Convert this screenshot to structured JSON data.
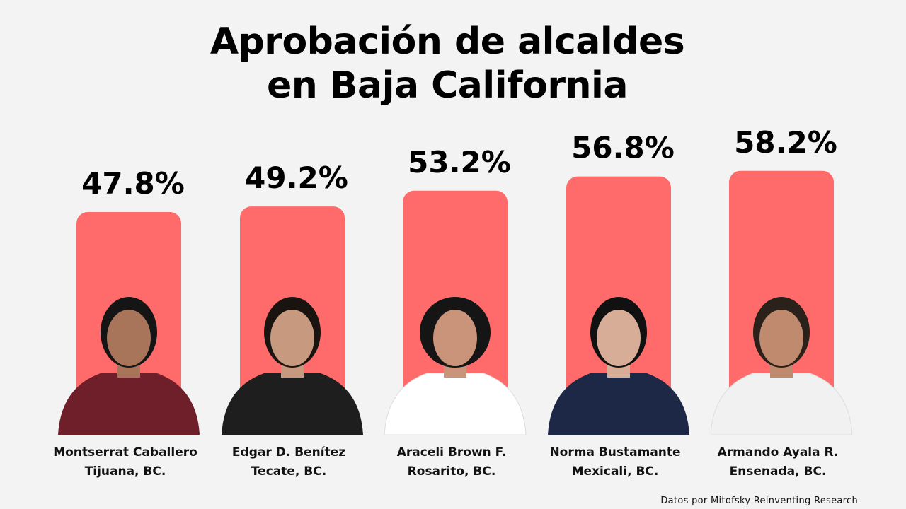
{
  "title_line1": "Aprobación de alcaldes",
  "title_line2": "en Baja California",
  "source": "Datos por Mitofsky Reinventing Research",
  "colors": {
    "bar": "#ff6b6b",
    "background": "#f3f3f3"
  },
  "chart_data": {
    "type": "bar",
    "title": "Aprobación de alcaldes en Baja California",
    "categories": [
      "Montserrat Caballero Tijuana, BC.",
      "Edgar D. Benítez Tecate, BC.",
      "Araceli Brown F. Rosarito, BC.",
      "Norma Bustamante Mexicali, BC.",
      "Armando Ayala R. Ensenada, BC."
    ],
    "people": [
      {
        "name": "Montserrat Caballero",
        "city": "Tijuana, BC."
      },
      {
        "name": "Edgar D. Benítez",
        "city": "Tecate, BC."
      },
      {
        "name": "Araceli Brown F.",
        "city": "Rosarito, BC."
      },
      {
        "name": "Norma Bustamante",
        "city": "Mexicali, BC."
      },
      {
        "name": "Armando Ayala R.",
        "city": "Ensenada, BC."
      }
    ],
    "values": [
      47.8,
      49.2,
      53.2,
      56.8,
      58.2
    ],
    "value_labels": [
      "47.8%",
      "49.2%",
      "53.2%",
      "56.8%",
      "58.2%"
    ],
    "unit": "%",
    "legend": "none",
    "grid": false
  }
}
